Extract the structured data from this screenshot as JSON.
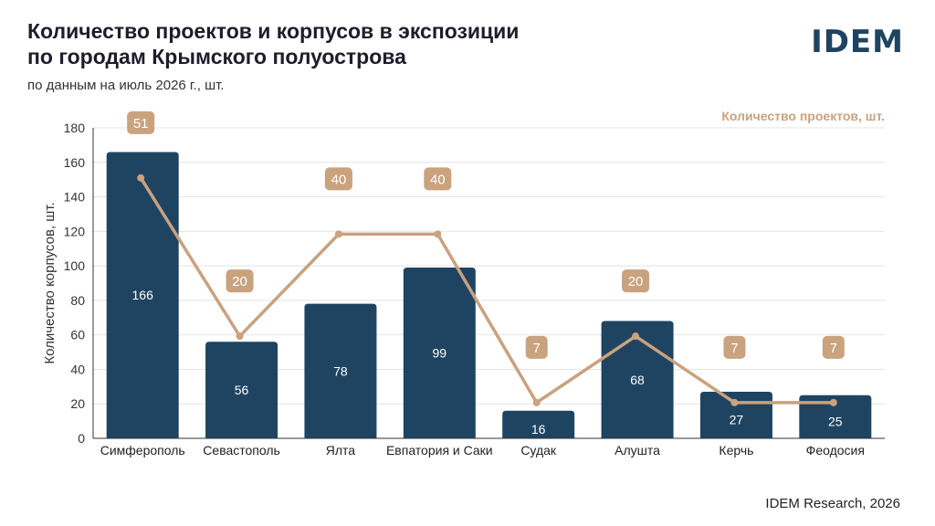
{
  "header": {
    "title_line1": "Количество проектов и корпусов в экспозиции",
    "title_line2": "по городам Крымского полуострова",
    "subtitle": "по данным на июль 2026 г., шт.",
    "logo": "IDEM"
  },
  "footer": {
    "source": "IDEM Research, 2026"
  },
  "colors": {
    "bar": "#1f4461",
    "line": "#c9a27e",
    "grid": "#e4e4e4",
    "axis": "#333333"
  },
  "chart_data": {
    "type": "bar",
    "categories": [
      "Симферополь",
      "Севастополь",
      "Ялта",
      "Евпатория и Саки",
      "Судак",
      "Алушта",
      "Керчь",
      "Феодосия"
    ],
    "series": [
      {
        "values": [
          166,
          56,
          78,
          99,
          16,
          68,
          27,
          25
        ],
        "type": "bar"
      },
      {
        "name": "Количество проектов, шт.",
        "values": [
          51,
          20,
          40,
          40,
          7,
          20,
          7,
          7
        ],
        "type": "line"
      }
    ],
    "ylabel": "Количество корпусов, шт.",
    "ylim": [
      0,
      180
    ],
    "yticks": [
      0,
      20,
      40,
      60,
      80,
      100,
      120,
      140,
      160,
      180
    ],
    "grid": true,
    "legend": "top-right"
  }
}
